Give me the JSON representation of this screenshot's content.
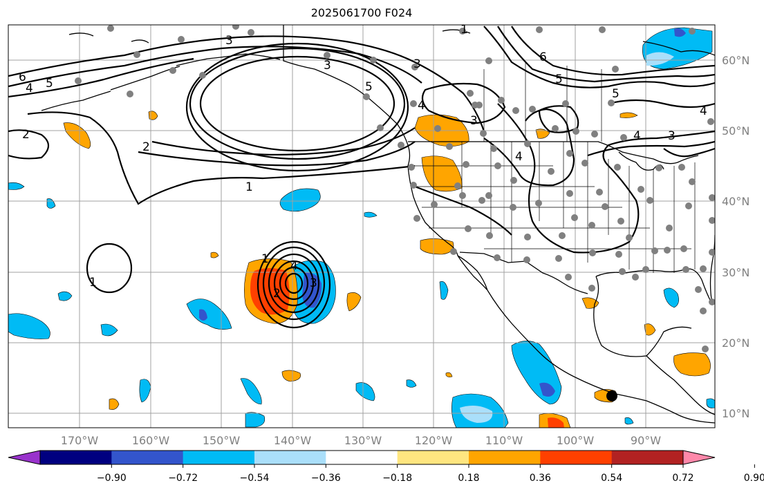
{
  "title": "2025061700 F024",
  "map": {
    "longitude_labels": [
      "170°W",
      "160°W",
      "150°W",
      "140°W",
      "130°W",
      "120°W",
      "110°W",
      "100°W",
      "90°W"
    ],
    "latitude_labels": [
      "60°N",
      "50°N",
      "40°N",
      "30°N",
      "20°N",
      "10°N"
    ],
    "contour_labels": [
      "6",
      "4",
      "5",
      "3",
      "2",
      "1",
      "3",
      "4",
      "5",
      "3",
      "4",
      "5",
      "6",
      "4",
      "3",
      "2",
      "1",
      "1",
      "2",
      "3",
      "4",
      "1",
      "5",
      "4",
      "3"
    ],
    "colors": {
      "contour": "#000000",
      "coast": "#000000",
      "grid": "#a0a0a0",
      "station_dots": "#808080",
      "ocean": "#ffffff"
    }
  },
  "colorbar": {
    "levels": [
      "−0.90",
      "−0.72",
      "−0.54",
      "−0.36",
      "−0.18",
      "0.18",
      "0.36",
      "0.54",
      "0.72",
      "0.90"
    ],
    "colors": [
      "#9933cc",
      "#000080",
      "#3355cc",
      "#00bbf5",
      "#aadffa",
      "#ffffff",
      "#ffe680",
      "#ffa500",
      "#ff4000",
      "#b22222",
      "#ff88aa"
    ],
    "extend": "both"
  }
}
